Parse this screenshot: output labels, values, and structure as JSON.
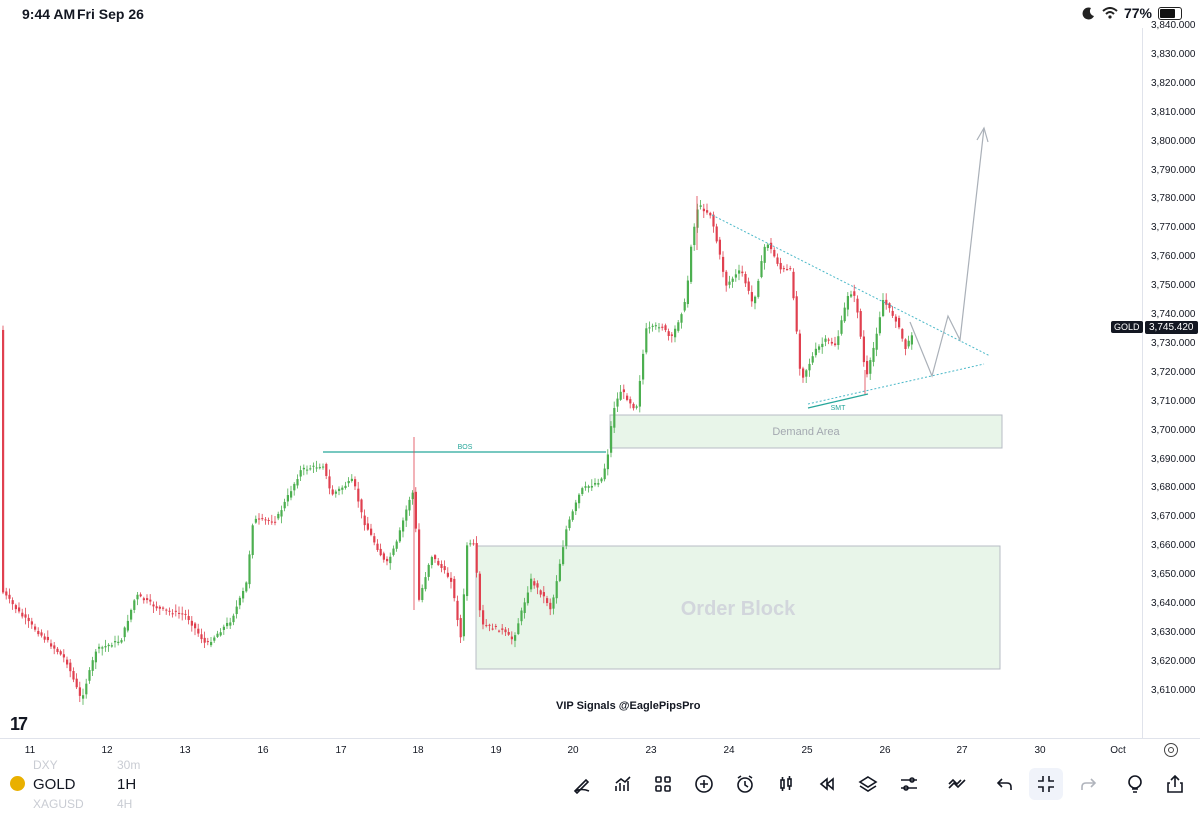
{
  "status_bar": {
    "time": "9:44 AM",
    "date": "Fri Sep 26",
    "battery": "77%"
  },
  "chart": {
    "symbol": "GOLD",
    "interval": "1H",
    "last_price": "3,745.420",
    "last_symbol": "GOLD",
    "price_ticks": [
      "3,840.000",
      "3,830.000",
      "3,820.000",
      "3,810.000",
      "3,800.000",
      "3,790.000",
      "3,780.000",
      "3,770.000",
      "3,760.000",
      "3,750.000",
      "3,740.000",
      "3,730.000",
      "3,720.000",
      "3,710.000",
      "3,700.000",
      "3,690.000",
      "3,680.000",
      "3,670.000",
      "3,660.000",
      "3,650.000",
      "3,640.000",
      "3,630.000",
      "3,620.000",
      "3,610.000"
    ],
    "time_ticks": [
      "11",
      "12",
      "13",
      "16",
      "17",
      "18",
      "19",
      "20",
      "23",
      "24",
      "25",
      "26",
      "27",
      "30",
      "Oct"
    ],
    "annotations": {
      "bos": "BOS",
      "demand": "Demand Area",
      "order_block": "Order Block",
      "smt": "SMT"
    },
    "watermark": "VIP Signals @EaglePipsPro",
    "colors": {
      "up": "#26a69a",
      "up_candle": "#4caf50",
      "down": "#e0404f",
      "zone": "#e8f5e9",
      "trend": "#4ab8c8"
    }
  },
  "watchlist_ghost": [
    "DXY",
    "30m",
    "XAGUSD",
    "4H"
  ],
  "toolbar": {
    "icons": [
      "draw-icon",
      "indicators-icon",
      "templates-icon",
      "add-icon",
      "alert-icon",
      "candles-icon",
      "replay-icon",
      "layers-icon",
      "settings-icon",
      "trade-icon",
      "undo-icon",
      "fullscreen-exit-icon",
      "redo-icon",
      "ideas-icon",
      "share-icon"
    ]
  }
}
